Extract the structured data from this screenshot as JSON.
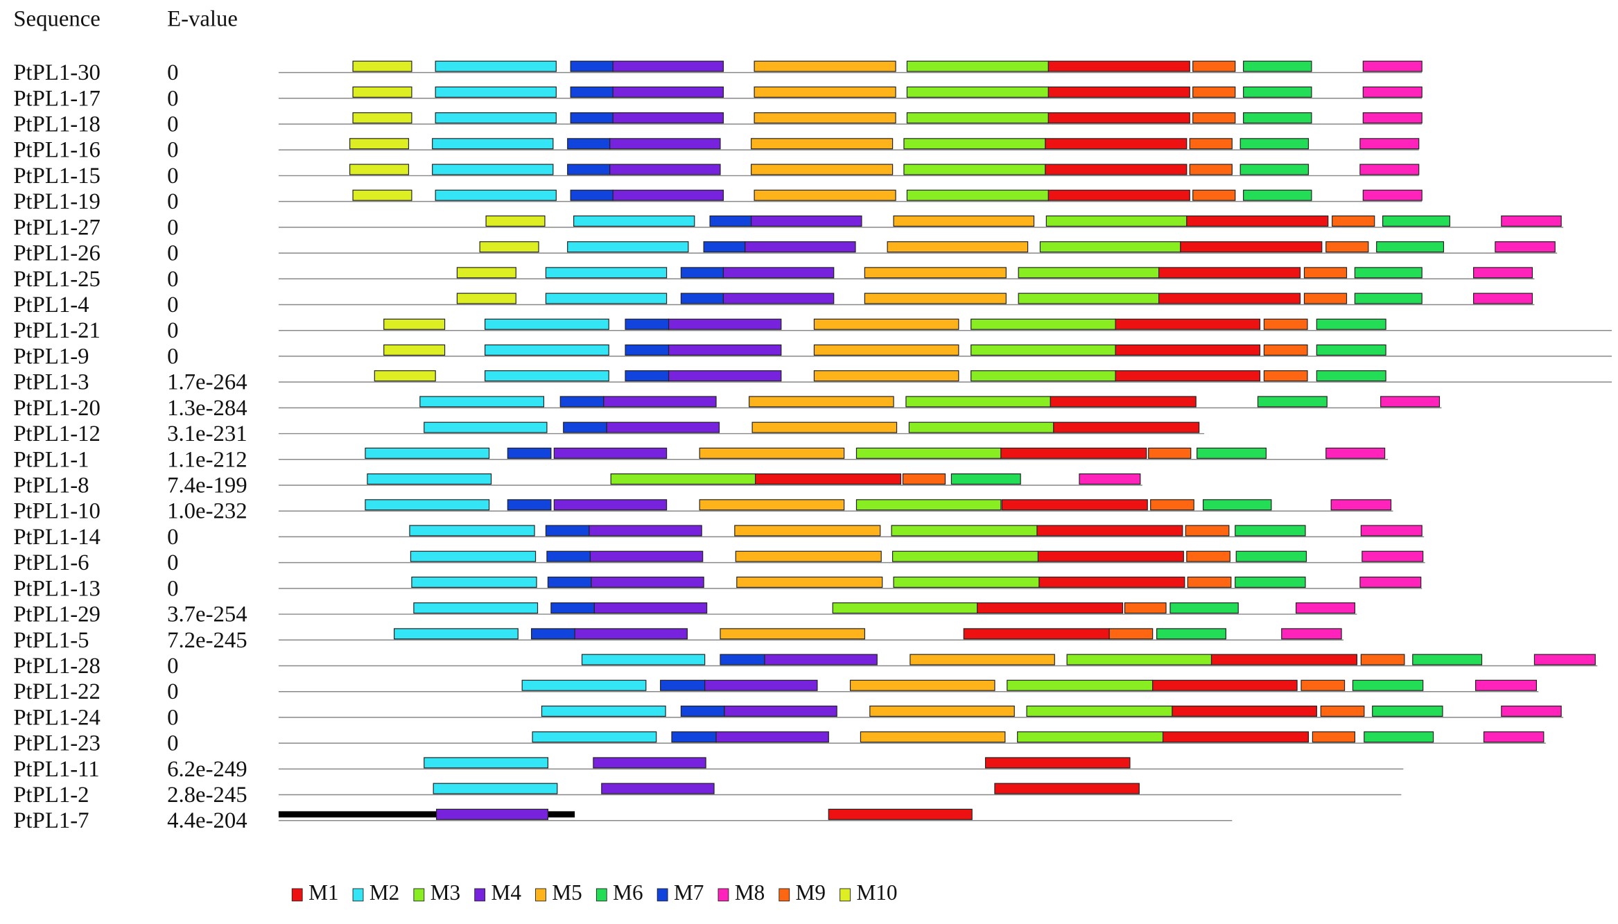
{
  "header": {
    "sequence": "Sequence",
    "evalue": "E-value"
  },
  "motifs": [
    {
      "label": "M1",
      "color": "#ee1111"
    },
    {
      "label": "M2",
      "color": "#33e5f5"
    },
    {
      "label": "M3",
      "color": "#88ee22"
    },
    {
      "label": "M4",
      "color": "#7722dd"
    },
    {
      "label": "M5",
      "color": "#ffb31a"
    },
    {
      "label": "M6",
      "color": "#22dd55"
    },
    {
      "label": "M7",
      "color": "#1144dd"
    },
    {
      "label": "M8",
      "color": "#ff22bb"
    },
    {
      "label": "M9",
      "color": "#ff6611"
    },
    {
      "label": "M10",
      "color": "#ddee22"
    }
  ],
  "sequences": [
    {
      "name": "PtPL1-30",
      "evalue": "0",
      "length": 1108,
      "motifs": [
        [
          9,
          72,
          129
        ],
        [
          1,
          152,
          269
        ],
        [
          6,
          283,
          324
        ],
        [
          3,
          324,
          431
        ],
        [
          4,
          461,
          598
        ],
        [
          2,
          609,
          746
        ],
        [
          0,
          746,
          883
        ],
        [
          8,
          886,
          927
        ],
        [
          5,
          935,
          1001
        ],
        [
          7,
          1051,
          1108
        ]
      ]
    },
    {
      "name": "PtPL1-17",
      "evalue": "0",
      "length": 1108,
      "motifs": [
        [
          9,
          72,
          129
        ],
        [
          1,
          152,
          269
        ],
        [
          6,
          283,
          324
        ],
        [
          3,
          324,
          431
        ],
        [
          4,
          461,
          598
        ],
        [
          2,
          609,
          746
        ],
        [
          0,
          746,
          883
        ],
        [
          8,
          886,
          927
        ],
        [
          5,
          935,
          1001
        ],
        [
          7,
          1051,
          1108
        ]
      ]
    },
    {
      "name": "PtPL1-18",
      "evalue": "0",
      "length": 1108,
      "motifs": [
        [
          9,
          72,
          129
        ],
        [
          1,
          152,
          269
        ],
        [
          6,
          283,
          324
        ],
        [
          3,
          324,
          431
        ],
        [
          4,
          461,
          598
        ],
        [
          2,
          609,
          746
        ],
        [
          0,
          746,
          883
        ],
        [
          8,
          886,
          927
        ],
        [
          5,
          935,
          1001
        ],
        [
          7,
          1051,
          1108
        ]
      ]
    },
    {
      "name": "PtPL1-16",
      "evalue": "0",
      "length": 1105,
      "motifs": [
        [
          9,
          69,
          126
        ],
        [
          1,
          149,
          266
        ],
        [
          6,
          280,
          321
        ],
        [
          3,
          321,
          428
        ],
        [
          4,
          458,
          595
        ],
        [
          2,
          606,
          743
        ],
        [
          0,
          743,
          880
        ],
        [
          8,
          883,
          924
        ],
        [
          5,
          932,
          998
        ],
        [
          7,
          1048,
          1105
        ]
      ]
    },
    {
      "name": "PtPL1-15",
      "evalue": "0",
      "length": 1105,
      "motifs": [
        [
          9,
          69,
          126
        ],
        [
          1,
          149,
          266
        ],
        [
          6,
          280,
          321
        ],
        [
          3,
          321,
          428
        ],
        [
          4,
          458,
          595
        ],
        [
          2,
          606,
          743
        ],
        [
          0,
          743,
          880
        ],
        [
          8,
          883,
          924
        ],
        [
          5,
          932,
          998
        ],
        [
          7,
          1048,
          1105
        ]
      ]
    },
    {
      "name": "PtPL1-19",
      "evalue": "0",
      "length": 1108,
      "motifs": [
        [
          9,
          72,
          129
        ],
        [
          1,
          152,
          269
        ],
        [
          6,
          283,
          324
        ],
        [
          3,
          324,
          431
        ],
        [
          4,
          461,
          598
        ],
        [
          2,
          609,
          746
        ],
        [
          0,
          746,
          883
        ],
        [
          8,
          886,
          927
        ],
        [
          5,
          935,
          1001
        ],
        [
          7,
          1051,
          1108
        ]
      ]
    },
    {
      "name": "PtPL1-27",
      "evalue": "0",
      "length": 1245,
      "motifs": [
        [
          9,
          201,
          258
        ],
        [
          1,
          286,
          403
        ],
        [
          6,
          418,
          458
        ],
        [
          3,
          458,
          565
        ],
        [
          4,
          596,
          732
        ],
        [
          2,
          744,
          880
        ],
        [
          0,
          880,
          1017
        ],
        [
          8,
          1021,
          1062
        ],
        [
          5,
          1070,
          1135
        ],
        [
          7,
          1185,
          1243
        ]
      ]
    },
    {
      "name": "PtPL1-26",
      "evalue": "0",
      "length": 1239,
      "motifs": [
        [
          9,
          195,
          252
        ],
        [
          1,
          280,
          397
        ],
        [
          6,
          412,
          452
        ],
        [
          3,
          452,
          559
        ],
        [
          4,
          590,
          726
        ],
        [
          2,
          738,
          874
        ],
        [
          0,
          874,
          1011
        ],
        [
          8,
          1015,
          1056
        ],
        [
          5,
          1064,
          1129
        ],
        [
          7,
          1179,
          1237
        ]
      ]
    },
    {
      "name": "PtPL1-25",
      "evalue": "0",
      "length": 1217,
      "motifs": [
        [
          9,
          173,
          230
        ],
        [
          1,
          259,
          376
        ],
        [
          6,
          390,
          431
        ],
        [
          3,
          431,
          538
        ],
        [
          4,
          568,
          705
        ],
        [
          2,
          717,
          853
        ],
        [
          0,
          853,
          990
        ],
        [
          8,
          994,
          1035
        ],
        [
          5,
          1043,
          1108
        ],
        [
          7,
          1158,
          1215
        ]
      ]
    },
    {
      "name": "PtPL1-4",
      "evalue": "0",
      "length": 1217,
      "motifs": [
        [
          9,
          173,
          230
        ],
        [
          1,
          259,
          376
        ],
        [
          6,
          390,
          431
        ],
        [
          3,
          431,
          538
        ],
        [
          4,
          568,
          705
        ],
        [
          2,
          717,
          853
        ],
        [
          0,
          853,
          990
        ],
        [
          8,
          994,
          1035
        ],
        [
          5,
          1043,
          1108
        ],
        [
          7,
          1158,
          1215
        ]
      ]
    },
    {
      "name": "PtPL1-21",
      "evalue": "0",
      "length": 1292,
      "motifs": [
        [
          9,
          102,
          161
        ],
        [
          1,
          200,
          320
        ],
        [
          6,
          336,
          378
        ],
        [
          3,
          378,
          487
        ],
        [
          4,
          519,
          659
        ],
        [
          2,
          671,
          811
        ],
        [
          0,
          811,
          951
        ],
        [
          8,
          955,
          997
        ],
        [
          5,
          1006,
          1073
        ]
      ]
    },
    {
      "name": "PtPL1-9",
      "evalue": "0",
      "length": 1292,
      "motifs": [
        [
          9,
          102,
          161
        ],
        [
          1,
          200,
          320
        ],
        [
          6,
          336,
          378
        ],
        [
          3,
          378,
          487
        ],
        [
          4,
          519,
          659
        ],
        [
          2,
          671,
          811
        ],
        [
          0,
          811,
          951
        ],
        [
          8,
          955,
          997
        ],
        [
          5,
          1006,
          1073
        ]
      ]
    },
    {
      "name": "PtPL1-3",
      "evalue": "1.7e-264",
      "length": 1292,
      "motifs": [
        [
          9,
          93,
          152
        ],
        [
          1,
          200,
          320
        ],
        [
          6,
          336,
          378
        ],
        [
          3,
          378,
          487
        ],
        [
          4,
          519,
          659
        ],
        [
          2,
          671,
          811
        ],
        [
          0,
          811,
          951
        ],
        [
          8,
          955,
          997
        ],
        [
          5,
          1006,
          1073
        ]
      ]
    },
    {
      "name": "PtPL1-20",
      "evalue": "1.3e-284",
      "length": 1127,
      "motifs": [
        [
          1,
          137,
          257
        ],
        [
          6,
          273,
          315
        ],
        [
          3,
          315,
          424
        ],
        [
          4,
          456,
          596
        ],
        [
          2,
          608,
          748
        ],
        [
          0,
          748,
          889
        ],
        [
          5,
          949,
          1016
        ],
        [
          7,
          1068,
          1125
        ]
      ]
    },
    {
      "name": "PtPL1-12",
      "evalue": "3.1e-231",
      "length": 897,
      "motifs": [
        [
          1,
          141,
          260
        ],
        [
          6,
          276,
          318
        ],
        [
          3,
          318,
          427
        ],
        [
          4,
          459,
          599
        ],
        [
          2,
          611,
          751
        ],
        [
          0,
          751,
          892
        ]
      ]
    },
    {
      "name": "PtPL1-1",
      "evalue": "1.1e-212",
      "length": 1075,
      "motifs": [
        [
          1,
          84,
          204
        ],
        [
          6,
          222,
          264
        ],
        [
          3,
          267,
          376
        ],
        [
          4,
          408,
          548
        ],
        [
          2,
          560,
          700
        ],
        [
          0,
          700,
          841
        ],
        [
          8,
          843,
          884
        ],
        [
          5,
          890,
          957
        ],
        [
          7,
          1015,
          1072
        ]
      ]
    },
    {
      "name": "PtPL1-8",
      "evalue": "7.4e-199",
      "length": 837,
      "motifs": [
        [
          1,
          86,
          206
        ],
        [
          2,
          322,
          462
        ],
        [
          0,
          462,
          603
        ],
        [
          8,
          605,
          646
        ],
        [
          5,
          652,
          719
        ],
        [
          7,
          776,
          835
        ]
      ]
    },
    {
      "name": "PtPL1-10",
      "evalue": "1.0e-232",
      "length": 1080,
      "motifs": [
        [
          1,
          84,
          204
        ],
        [
          6,
          222,
          264
        ],
        [
          3,
          267,
          376
        ],
        [
          4,
          408,
          548
        ],
        [
          2,
          560,
          700
        ],
        [
          0,
          701,
          842
        ],
        [
          8,
          845,
          887
        ],
        [
          5,
          896,
          962
        ],
        [
          7,
          1020,
          1078
        ]
      ]
    },
    {
      "name": "PtPL1-14",
      "evalue": "0",
      "length": 1110,
      "motifs": [
        [
          1,
          127,
          248
        ],
        [
          6,
          259,
          301
        ],
        [
          3,
          301,
          410
        ],
        [
          4,
          442,
          583
        ],
        [
          2,
          594,
          735
        ],
        [
          0,
          735,
          876
        ],
        [
          8,
          879,
          921
        ],
        [
          5,
          927,
          995
        ],
        [
          7,
          1049,
          1108
        ]
      ]
    },
    {
      "name": "PtPL1-6",
      "evalue": "0",
      "length": 1111,
      "motifs": [
        [
          1,
          128,
          249
        ],
        [
          6,
          260,
          302
        ],
        [
          3,
          302,
          411
        ],
        [
          4,
          443,
          584
        ],
        [
          2,
          595,
          736
        ],
        [
          0,
          736,
          877
        ],
        [
          8,
          880,
          922
        ],
        [
          5,
          928,
          996
        ],
        [
          7,
          1050,
          1109
        ]
      ]
    },
    {
      "name": "PtPL1-13",
      "evalue": "0",
      "length": 1108,
      "motifs": [
        [
          1,
          129,
          250
        ],
        [
          6,
          261,
          303
        ],
        [
          3,
          303,
          412
        ],
        [
          4,
          444,
          585
        ],
        [
          2,
          596,
          737
        ],
        [
          0,
          737,
          878
        ],
        [
          8,
          881,
          923
        ],
        [
          5,
          927,
          995
        ],
        [
          7,
          1048,
          1107
        ]
      ]
    },
    {
      "name": "PtPL1-29",
      "evalue": "3.7e-254",
      "length": 1045,
      "motifs": [
        [
          1,
          131,
          251
        ],
        [
          6,
          264,
          306
        ],
        [
          3,
          306,
          415
        ],
        [
          2,
          537,
          677
        ],
        [
          0,
          677,
          818
        ],
        [
          8,
          820,
          860
        ],
        [
          5,
          864,
          930
        ],
        [
          7,
          986,
          1043
        ]
      ]
    },
    {
      "name": "PtPL1-5",
      "evalue": "7.2e-245",
      "length": 1032,
      "motifs": [
        [
          1,
          112,
          232
        ],
        [
          6,
          245,
          287
        ],
        [
          3,
          287,
          396
        ],
        [
          4,
          428,
          568
        ],
        [
          0,
          664,
          805
        ],
        [
          8,
          805,
          847
        ],
        [
          5,
          851,
          918
        ],
        [
          7,
          972,
          1030
        ]
      ]
    },
    {
      "name": "PtPL1-28",
      "evalue": "0",
      "length": 1278,
      "motifs": [
        [
          1,
          294,
          413
        ],
        [
          6,
          428,
          471
        ],
        [
          3,
          471,
          580
        ],
        [
          4,
          612,
          752
        ],
        [
          2,
          764,
          904
        ],
        [
          0,
          904,
          1045
        ],
        [
          8,
          1049,
          1091
        ],
        [
          5,
          1099,
          1166
        ],
        [
          7,
          1217,
          1276
        ]
      ]
    },
    {
      "name": "PtPL1-22",
      "evalue": "0",
      "length": 1221,
      "motifs": [
        [
          1,
          236,
          356
        ],
        [
          6,
          370,
          413
        ],
        [
          3,
          413,
          522
        ],
        [
          4,
          554,
          694
        ],
        [
          2,
          706,
          847
        ],
        [
          0,
          847,
          987
        ],
        [
          8,
          991,
          1033
        ],
        [
          5,
          1041,
          1109
        ],
        [
          7,
          1160,
          1219
        ]
      ]
    },
    {
      "name": "PtPL1-24",
      "evalue": "0",
      "length": 1245,
      "motifs": [
        [
          1,
          255,
          375
        ],
        [
          6,
          390,
          432
        ],
        [
          3,
          432,
          541
        ],
        [
          4,
          573,
          713
        ],
        [
          2,
          725,
          866
        ],
        [
          0,
          866,
          1006
        ],
        [
          8,
          1010,
          1052
        ],
        [
          5,
          1060,
          1128
        ],
        [
          7,
          1185,
          1243
        ]
      ]
    },
    {
      "name": "PtPL1-23",
      "evalue": "0",
      "length": 1228,
      "motifs": [
        [
          1,
          246,
          366
        ],
        [
          6,
          381,
          424
        ],
        [
          3,
          424,
          533
        ],
        [
          4,
          564,
          704
        ],
        [
          2,
          716,
          857
        ],
        [
          0,
          857,
          998
        ],
        [
          8,
          1002,
          1043
        ],
        [
          5,
          1052,
          1119
        ],
        [
          7,
          1168,
          1226
        ]
      ]
    },
    {
      "name": "PtPL1-11",
      "evalue": "6.2e-249",
      "length": 1090,
      "motifs": [
        [
          1,
          141,
          261
        ],
        [
          3,
          305,
          414
        ],
        [
          0,
          685,
          825
        ]
      ]
    },
    {
      "name": "PtPL1-2",
      "evalue": "2.8e-245",
      "length": 1088,
      "motifs": [
        [
          1,
          150,
          270
        ],
        [
          3,
          313,
          422
        ],
        [
          0,
          694,
          834
        ]
      ]
    },
    {
      "name": "PtPL1-7",
      "evalue": "4.4e-204",
      "length": 924,
      "motifs": [
        [
          3,
          153,
          261
        ],
        [
          0,
          533,
          672
        ]
      ]
    }
  ]
}
